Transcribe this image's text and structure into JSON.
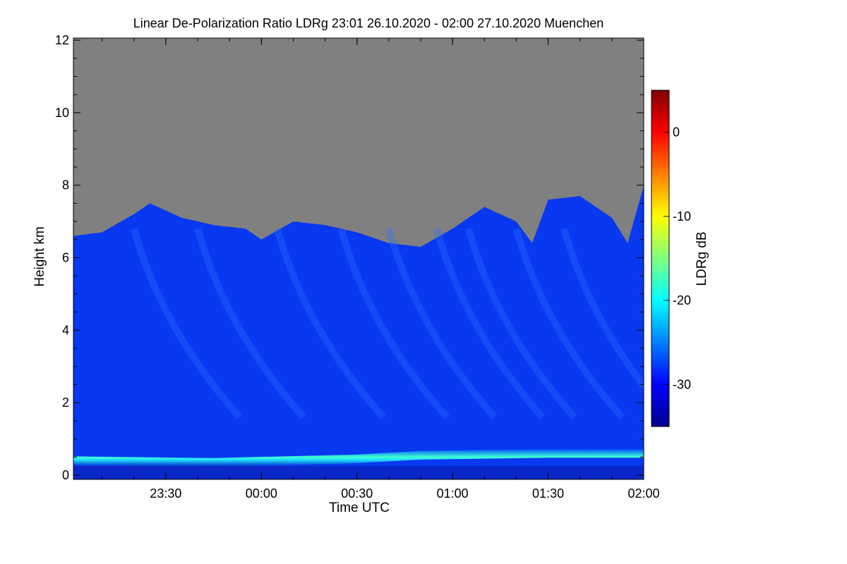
{
  "chart_data": {
    "type": "heatmap",
    "title": "Linear De-Polarization Ratio LDRg   23:01 26.10.2020 - 02:00 27.10.2020 Muenchen",
    "xlabel": "Time UTC",
    "ylabel": "Height km",
    "x_ticks": [
      "23:30",
      "00:00",
      "00:30",
      "01:00",
      "01:30",
      "02:00"
    ],
    "x_range": [
      "23:01",
      "02:00"
    ],
    "y_ticks": [
      "0",
      "2",
      "4",
      "6",
      "8",
      "10",
      "12"
    ],
    "ylim": [
      0,
      12
    ],
    "colorbar": {
      "label": "LDRg dB",
      "ticks": [
        "0",
        "-10",
        "-20",
        "-30"
      ],
      "range": [
        -35,
        5
      ],
      "colormap": [
        "#00008f",
        "#0000ff",
        "#0080ff",
        "#00ffff",
        "#80ff80",
        "#ffff00",
        "#ff8000",
        "#ff0000",
        "#800000"
      ]
    },
    "no_signal_color": "#808080",
    "cloud_top_km": [
      {
        "time": "23:01",
        "height": 6.6
      },
      {
        "time": "23:10",
        "height": 6.7
      },
      {
        "time": "23:20",
        "height": 7.2
      },
      {
        "time": "23:25",
        "height": 7.5
      },
      {
        "time": "23:35",
        "height": 7.1
      },
      {
        "time": "23:45",
        "height": 6.9
      },
      {
        "time": "23:55",
        "height": 6.8
      },
      {
        "time": "00:00",
        "height": 6.5
      },
      {
        "time": "00:10",
        "height": 7.0
      },
      {
        "time": "00:20",
        "height": 6.9
      },
      {
        "time": "00:30",
        "height": 6.7
      },
      {
        "time": "00:40",
        "height": 6.4
      },
      {
        "time": "00:50",
        "height": 6.3
      },
      {
        "time": "01:00",
        "height": 6.8
      },
      {
        "time": "01:10",
        "height": 7.4
      },
      {
        "time": "01:20",
        "height": 7.0
      },
      {
        "time": "01:25",
        "height": 6.4
      },
      {
        "time": "01:30",
        "height": 7.6
      },
      {
        "time": "01:40",
        "height": 7.7
      },
      {
        "time": "01:50",
        "height": 7.1
      },
      {
        "time": "01:55",
        "height": 6.4
      },
      {
        "time": "02:00",
        "height": 8.0
      }
    ],
    "boundary_layer_km": [
      {
        "time": "23:01",
        "height": 0.4,
        "ldr_db": -22
      },
      {
        "time": "23:45",
        "height": 0.35,
        "ldr_db": -21
      },
      {
        "time": "00:30",
        "height": 0.45,
        "ldr_db": -20
      },
      {
        "time": "00:50",
        "height": 0.55,
        "ldr_db": -21
      },
      {
        "time": "01:30",
        "height": 0.6,
        "ldr_db": -22
      },
      {
        "time": "02:00",
        "height": 0.6,
        "ldr_db": -22
      }
    ],
    "cloud_ldr_db": -28
  }
}
